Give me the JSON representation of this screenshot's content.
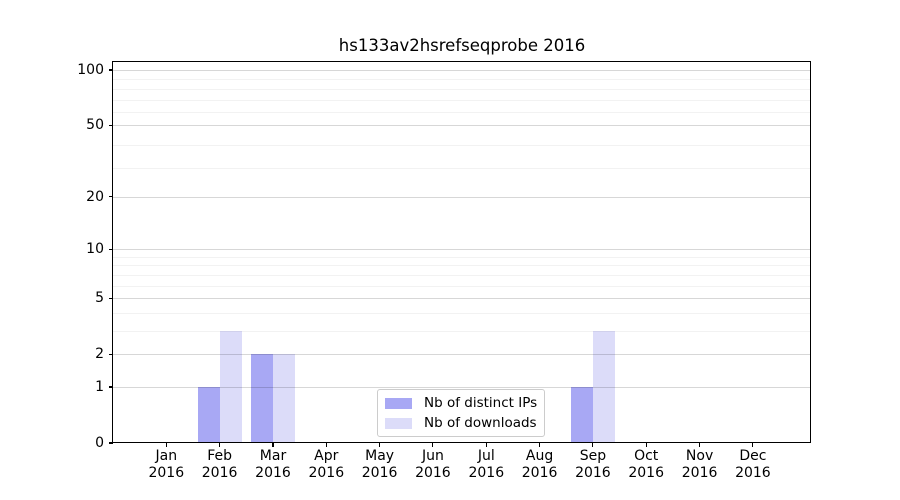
{
  "chart_data": {
    "type": "bar",
    "title": "hs133av2hsrefseqprobe 2016",
    "months": [
      "Jan",
      "Feb",
      "Mar",
      "Apr",
      "May",
      "Jun",
      "Jul",
      "Aug",
      "Sep",
      "Oct",
      "Nov",
      "Dec"
    ],
    "year_label": "2016",
    "series": [
      {
        "name": "Nb of distinct IPs",
        "color": "#a8a8f4",
        "values": [
          0,
          1,
          2,
          0,
          0,
          0,
          0,
          0,
          1,
          0,
          0,
          0
        ]
      },
      {
        "name": "Nb of downloads",
        "color": "#dcdcf9",
        "values": [
          0,
          3,
          2,
          0,
          0,
          0,
          0,
          0,
          3,
          0,
          0,
          0
        ]
      }
    ],
    "y_ticks": [
      0,
      1,
      2,
      5,
      10,
      20,
      50,
      100
    ],
    "y_minor_ticks": [
      3,
      4,
      6,
      7,
      8,
      9,
      29,
      39,
      59,
      69,
      79,
      89
    ],
    "y_scale": "log10(1+y)",
    "ylim": [
      0,
      110
    ],
    "xlabel": "",
    "ylabel": "",
    "grid": "horizontal",
    "legend_position": "inside-bottom-center"
  }
}
